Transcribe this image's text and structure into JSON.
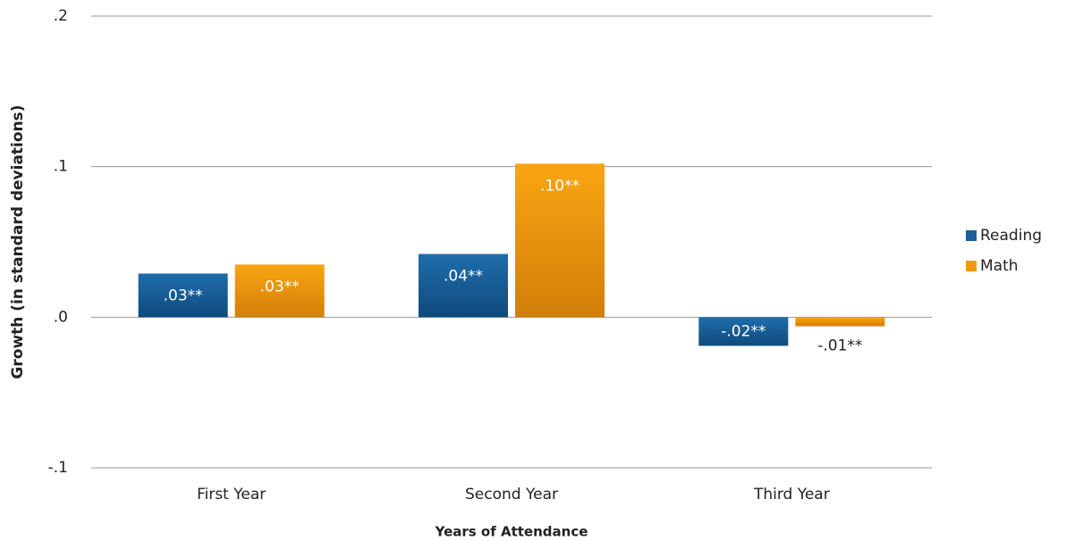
{
  "chart_data": {
    "type": "bar",
    "y_label": "Growth (in standard deviations)",
    "x_label": "Years of Attendance",
    "categories": [
      "First Year",
      "Second Year",
      "Third Year"
    ],
    "series": [
      {
        "name": "Reading",
        "color": "#1a5f98",
        "values": [
          0.029,
          0.042,
          -0.019
        ],
        "value_labels": [
          ".03**",
          ".04**",
          "-.02**"
        ]
      },
      {
        "name": "Math",
        "color": "#f29a0e",
        "values": [
          0.035,
          0.102,
          -0.006
        ],
        "value_labels": [
          ".03**",
          ".10**",
          "-.01**"
        ]
      }
    ],
    "ylim": [
      -0.1,
      0.2
    ],
    "yticks": [
      {
        "value": -0.1,
        "label": "-.1"
      },
      {
        "value": 0,
        "label": ".0"
      },
      {
        "value": 0.1,
        "label": ".1"
      },
      {
        "value": 0.2,
        "label": ".2"
      }
    ],
    "grid": true,
    "legend": "right"
  }
}
